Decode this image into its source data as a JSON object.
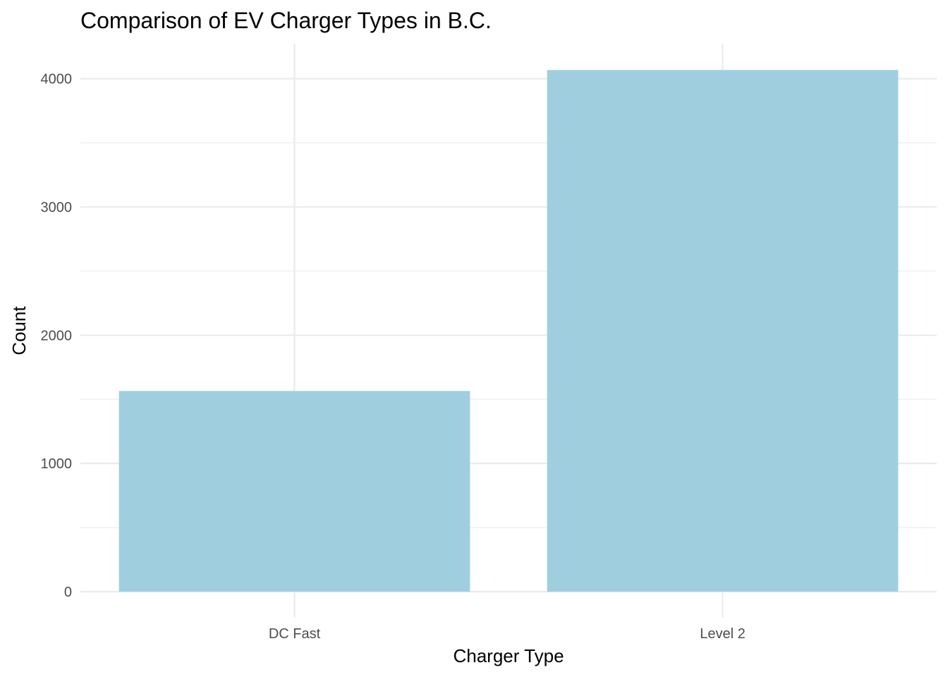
{
  "chart_data": {
    "type": "bar",
    "title": "Comparison of EV Charger Types in B.C.",
    "xlabel": "Charger Type",
    "ylabel": "Count",
    "categories": [
      "DC Fast",
      "Level 2"
    ],
    "values": [
      1565,
      4068
    ],
    "ylim": [
      0,
      4068
    ],
    "y_ticks": [
      0,
      1000,
      2000,
      3000,
      4000
    ],
    "y_tick_labels": [
      "0",
      "1000",
      "2000",
      "3000",
      "4000"
    ],
    "grid": true,
    "legend": "none",
    "bar_color": "#9fcfdf",
    "grid_color": "#ebebeb",
    "background_color": "#ffffff"
  }
}
